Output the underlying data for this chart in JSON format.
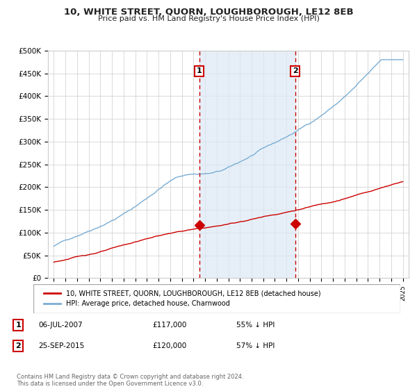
{
  "title": "10, WHITE STREET, QUORN, LOUGHBOROUGH, LE12 8EB",
  "subtitle": "Price paid vs. HM Land Registry's House Price Index (HPI)",
  "sale1_date": "06-JUL-2007",
  "sale1_price": "£117,000",
  "sale1_pct": "55% ↓ HPI",
  "sale2_date": "25-SEP-2015",
  "sale2_price": "£120,000",
  "sale2_pct": "57% ↓ HPI",
  "legend_property": "10, WHITE STREET, QUORN, LOUGHBOROUGH, LE12 8EB (detached house)",
  "legend_hpi": "HPI: Average price, detached house, Charnwood",
  "footer": "Contains HM Land Registry data © Crown copyright and database right 2024.\nThis data is licensed under the Open Government Licence v3.0.",
  "hpi_color": "#7aadd4",
  "price_color": "#cc0000",
  "shade_color": "#dce9f5",
  "grid_color": "#cccccc",
  "ylim": [
    0,
    500000
  ],
  "sale1_year": 2007.5,
  "sale2_year": 2015.75,
  "year_start": 1995,
  "year_end": 2025
}
